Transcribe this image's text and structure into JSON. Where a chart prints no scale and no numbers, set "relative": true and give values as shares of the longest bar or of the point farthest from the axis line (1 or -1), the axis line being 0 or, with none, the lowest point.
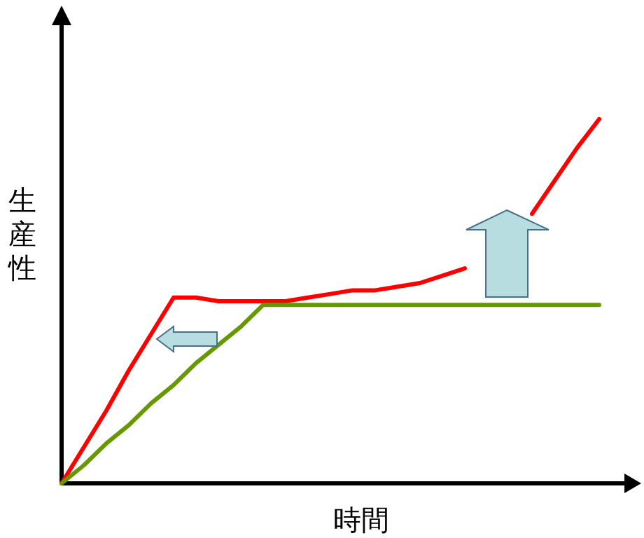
{
  "chart_data": {
    "type": "line",
    "relative": true,
    "xlabel": "時間",
    "ylabel": "生産性",
    "categories": [
      null,
      null,
      null,
      null,
      null,
      null,
      null,
      null,
      null,
      null,
      null,
      null,
      null,
      null,
      null,
      null,
      null,
      null,
      null,
      null,
      null,
      null,
      null,
      null,
      null
    ],
    "series": [
      {
        "color": "#ff0000",
        "values": [
          0,
          0.1,
          0.2,
          0.31,
          0.41,
          0.51,
          0.51,
          0.5,
          0.5,
          0.5,
          0.5,
          0.51,
          0.52,
          0.53,
          0.53,
          0.54,
          0.55,
          0.57,
          0.59,
          null,
          null,
          0.74,
          0.83,
          0.92,
          1
        ]
      },
      {
        "color": "#669900",
        "values": [
          0,
          0.05,
          0.11,
          0.16,
          0.22,
          0.27,
          0.33,
          0.38,
          0.43,
          0.49,
          0.49,
          0.49,
          0.49,
          0.49,
          0.49,
          0.49,
          0.49,
          0.49,
          0.49,
          0.49,
          0.49,
          0.49,
          0.49,
          0.49,
          0.49
        ]
      }
    ]
  }
}
